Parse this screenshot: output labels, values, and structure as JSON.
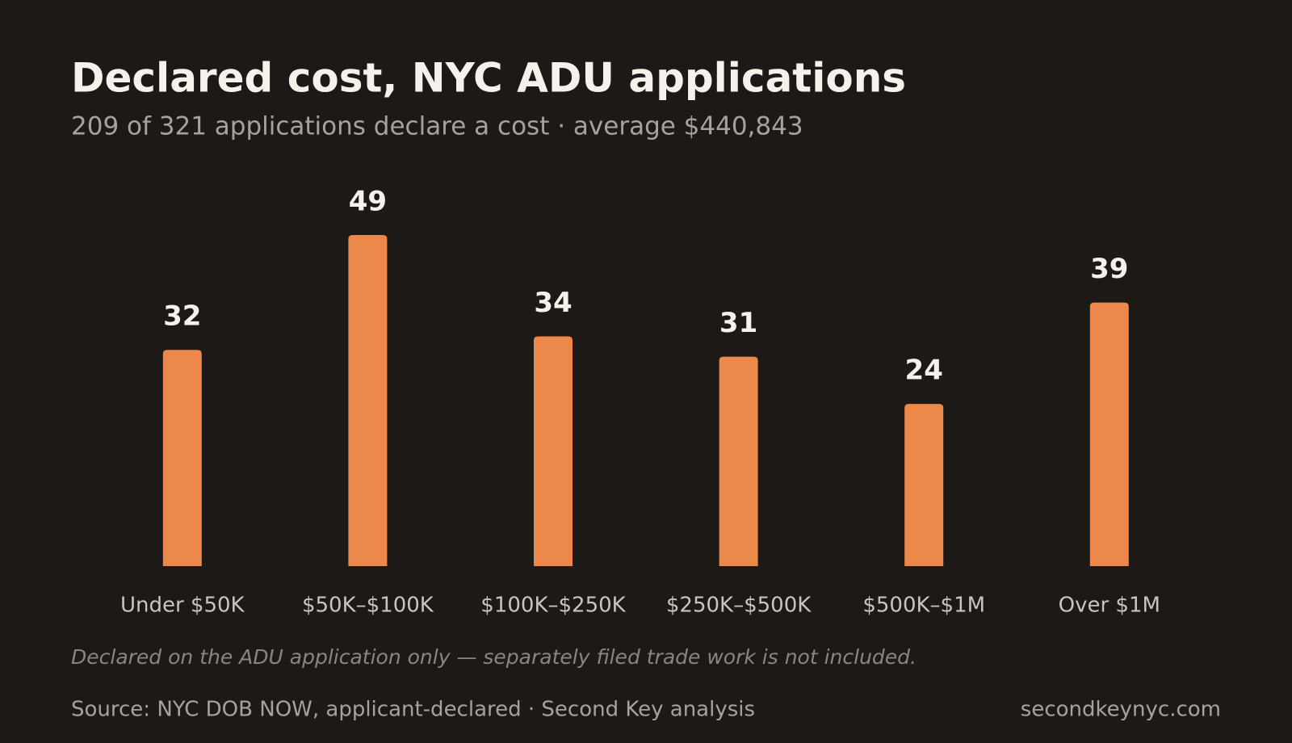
{
  "chart_data": {
    "type": "bar",
    "title": "Declared cost, NYC ADU applications",
    "subtitle": "209 of 321 applications declare a cost · average $440,843",
    "categories": [
      "Under $50K",
      "$50K–$100K",
      "$100K–$250K",
      "$250K–$500K",
      "$500K–$1M",
      "Over $1M"
    ],
    "values": [
      32,
      49,
      34,
      31,
      24,
      39
    ],
    "color": "#ec884a",
    "note": "Declared on the ADU application only — separately filed trade work is not included.",
    "source": "Source: NYC DOB NOW, applicant-declared · Second Key analysis",
    "credit": "secondkeynyc.com"
  }
}
